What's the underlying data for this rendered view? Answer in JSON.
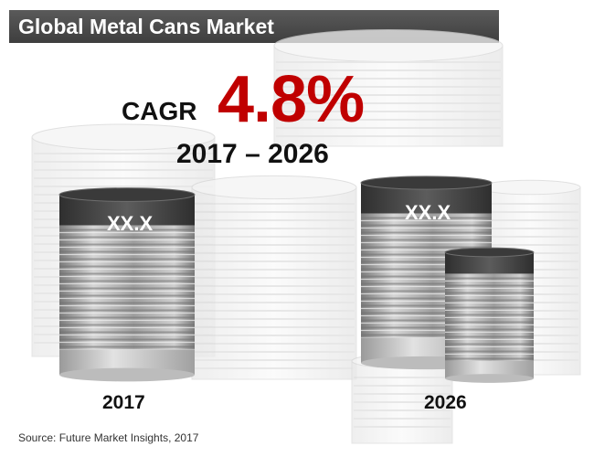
{
  "chart_data": {
    "type": "bar",
    "title": "Global Metal Cans Market",
    "categories": [
      "2017",
      "2026"
    ],
    "value_labels": [
      "XX.X",
      "XX.X"
    ],
    "cagr_label": "CAGR",
    "cagr_value": "4.8%",
    "period": "2017 – 2026",
    "source": "Source: Future Market Insights, 2017"
  },
  "colors": {
    "title_bar": "#464646",
    "cagr_value": "#c00000",
    "can_top": "#4a4a4a",
    "can_body": "#a8a8a8"
  }
}
